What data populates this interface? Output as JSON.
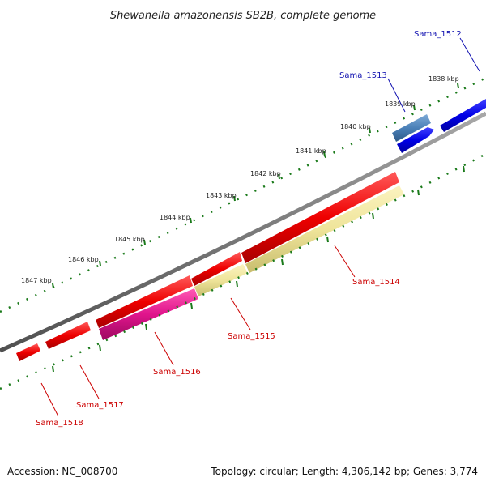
{
  "title": "Shewanella amazonensis SB2B, complete genome",
  "footer": {
    "accession": "Accession: NC_008700",
    "topology": "Topology: circular; Length: 4,306,142 bp; Genes: 3,774"
  },
  "scale_labels": [
    "1838 kbp",
    "1839 kbp",
    "1840 kbp",
    "1841 kbp",
    "1842 kbp",
    "1843 kbp",
    "1844 kbp",
    "1845 kbp",
    "1846 kbp",
    "1847 kbp"
  ],
  "colors": {
    "backbone": "#808080",
    "tick": "#1a7a1a",
    "forward_gene": "#0000e0",
    "forward_gene_alt": "#4a80b8",
    "reverse_gene": "#e80000",
    "yellow_feature": "#efe49a",
    "magenta_feature": "#e0148c",
    "forward_label": "#1010b0",
    "reverse_label": "#cc0000"
  },
  "genes": [
    {
      "name": "Sama_1512",
      "strand": "+",
      "color": "#0000e0",
      "label_color": "#1010b0"
    },
    {
      "name": "Sama_1513",
      "strand": "+",
      "color": "#4a80b8",
      "label_color": "#1010b0"
    },
    {
      "name": "Sama_1514",
      "strand": "-",
      "color": "#e80000",
      "label_color": "#cc0000"
    },
    {
      "name": "Sama_1515",
      "strand": "-",
      "color": "#e80000",
      "label_color": "#cc0000"
    },
    {
      "name": "Sama_1516",
      "strand": "-",
      "color": "#e80000",
      "label_color": "#cc0000"
    },
    {
      "name": "Sama_1517",
      "strand": "-",
      "color": "#e80000",
      "label_color": "#cc0000"
    },
    {
      "name": "Sama_1518",
      "strand": "-",
      "color": "#e80000",
      "label_color": "#cc0000"
    }
  ]
}
